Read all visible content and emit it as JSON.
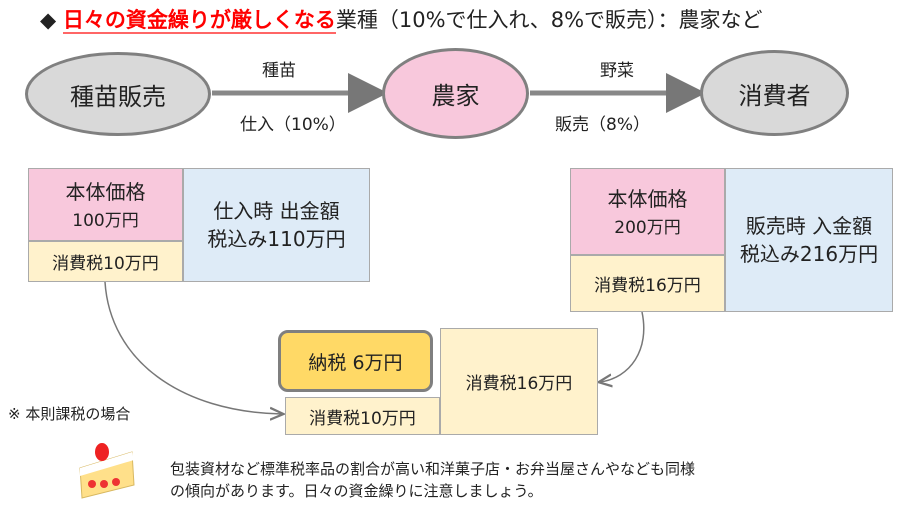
{
  "title": {
    "bullet": "◆",
    "highlight": "日々の資金繰りが厳しくなる",
    "rest": "業種（10%で仕入れ、8%で販売）：農家など",
    "highlight_color": "#FF0000"
  },
  "flow": {
    "nodes": [
      "種苗販売",
      "農家",
      "消費者"
    ],
    "edge1": {
      "top": "種苗",
      "bottom": "仕入（10%）"
    },
    "edge2": {
      "top": "野菜",
      "bottom": "販売（8%）"
    }
  },
  "left": {
    "price_label": "本体価格",
    "price": "100万円",
    "tax": "消費税10万円",
    "pay_line1": "仕入時 出金額",
    "pay_line2": "税込み110万円"
  },
  "right": {
    "price_label": "本体価格",
    "price": "200万円",
    "tax": "消費税16万円",
    "rec_line1": "販売時 入金額",
    "rec_line2": "税込み216万円"
  },
  "center": {
    "payment": "納税 6万円",
    "tax_in": "消費税10万円",
    "tax_out": "消費税16万円"
  },
  "note": "※ 本則課税の場合",
  "footer": {
    "icon": "cake-icon",
    "line1": "包装資材など標準税率品の割合が高い和洋菓子店・お弁当屋さんやなども同様",
    "line2": "の傾向があります。日々の資金繰りに注意しましょう。"
  }
}
